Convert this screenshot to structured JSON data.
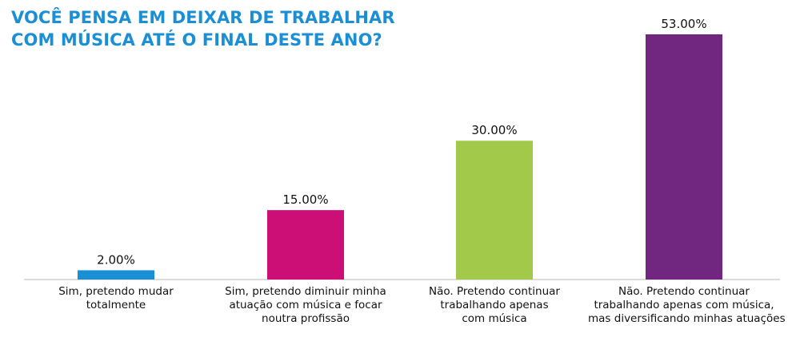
{
  "chart_data": {
    "type": "bar",
    "title_lines": [
      "VOCÊ PENSA EM DEIXAR DE TRABALHAR",
      "COM MÚSICA ATÉ O FINAL DESTE ANO?"
    ],
    "categories": [
      [
        "Sim, pretendo mudar",
        "totalmente"
      ],
      [
        "Sim, pretendo diminuir minha",
        "atuação com música e focar",
        "noutra profissão"
      ],
      [
        "Não. Pretendo continuar",
        "trabalhando apenas",
        "com música"
      ],
      [
        "Não. Pretendo continuar",
        "trabalhando apenas com música,",
        "mas diversificando minhas atuações"
      ]
    ],
    "values": [
      2,
      15,
      30,
      53
    ],
    "value_labels": [
      "2.00%",
      "15.00%",
      "30.00%",
      "53.00%"
    ],
    "colors": [
      "#1a8fd6",
      "#cc0f77",
      "#a3c94a",
      "#71267f"
    ],
    "ylim": [
      0,
      53
    ],
    "grid": false,
    "legend": "none"
  }
}
